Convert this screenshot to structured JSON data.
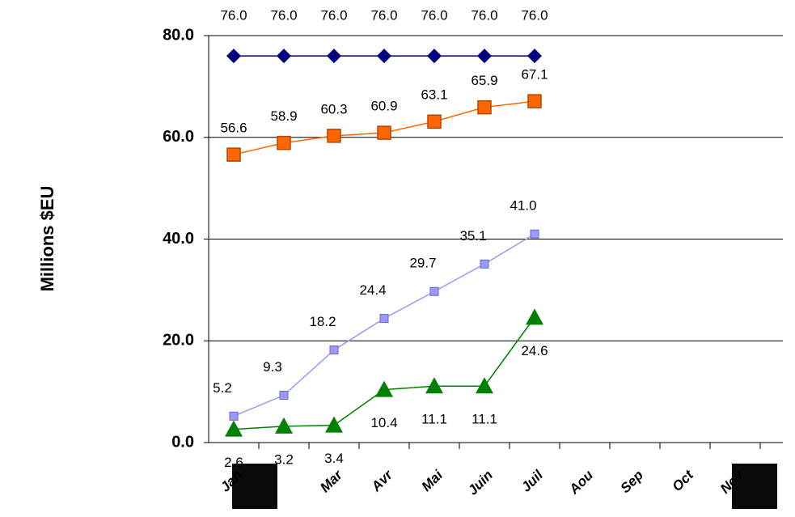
{
  "chart_data": {
    "type": "line",
    "y_label": "Millions $EU",
    "categories": [
      "Jan",
      null,
      "Mar",
      "Avr",
      "Mai",
      "Juin",
      "Juil",
      "Aou",
      "Sep",
      "Oct",
      "Nov",
      null
    ],
    "ylim": [
      0,
      80
    ],
    "yticks": [
      {
        "value": 0,
        "label": "0.0"
      },
      {
        "value": 20,
        "label": "20.0"
      },
      {
        "value": 40,
        "label": "40.0"
      },
      {
        "value": 60,
        "label": "60.0"
      },
      {
        "value": 80,
        "label": "80.0"
      }
    ],
    "grid": true,
    "series": [
      {
        "color": "#000080",
        "marker": "diamond",
        "values": [
          76,
          76,
          76,
          76,
          76,
          76,
          76,
          null,
          null,
          null,
          null,
          null
        ],
        "value_labels": [
          "76.0",
          "76.0",
          "76.0",
          "76.0",
          "76.0",
          "76.0",
          "76.0",
          null,
          null,
          null,
          null,
          null
        ]
      },
      {
        "color": "#ff6600",
        "marker": "square",
        "values": [
          56.6,
          58.9,
          60.3,
          60.9,
          63.1,
          65.9,
          67.1,
          null,
          null,
          null,
          null,
          null
        ]
      },
      {
        "color": "#9999ff",
        "marker": "small-square",
        "values": [
          5.2,
          9.3,
          18.2,
          24.4,
          29.7,
          35.1,
          41.0,
          null,
          null,
          null,
          null,
          null
        ],
        "value_labels": [
          "5.2",
          "9.3",
          "18.2",
          "24.4",
          "29.7",
          "35.1",
          "41.0",
          null,
          null,
          null,
          null,
          null
        ]
      },
      {
        "color": "#008000",
        "marker": "triangle",
        "values": [
          2.6,
          3.2,
          3.4,
          10.4,
          11.1,
          11.1,
          24.6,
          null,
          null,
          null,
          null,
          null
        ]
      }
    ]
  }
}
